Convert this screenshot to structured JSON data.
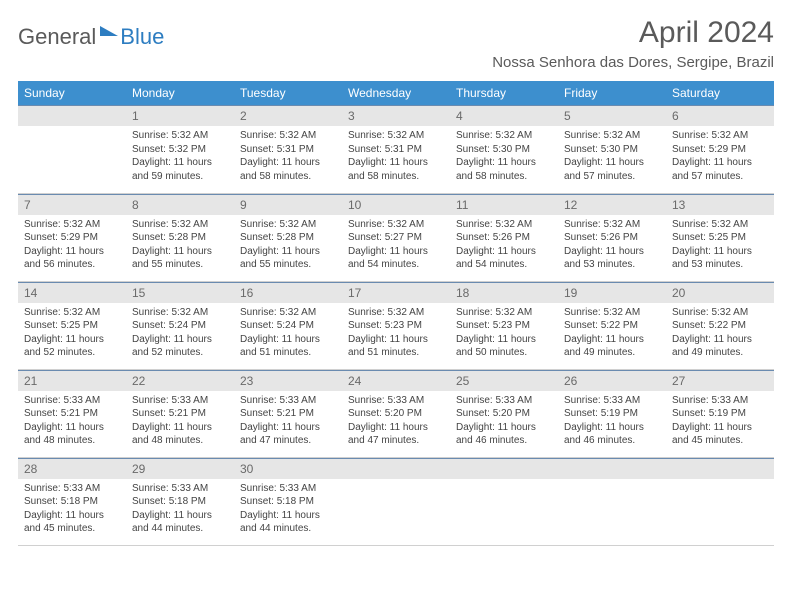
{
  "logo": {
    "part1": "General",
    "part2": "Blue"
  },
  "title": "April 2024",
  "location": "Nossa Senhora das Dores, Sergipe, Brazil",
  "colors": {
    "header_bg": "#3d8fce",
    "header_text": "#ffffff",
    "daynum_bg": "#e6e6e6",
    "daynum_text": "#6a6a6a",
    "border": "#6a8bb0",
    "text": "#444444",
    "title": "#5a5a5a",
    "logo_blue": "#2d7dc1"
  },
  "weekdays": [
    "Sunday",
    "Monday",
    "Tuesday",
    "Wednesday",
    "Thursday",
    "Friday",
    "Saturday"
  ],
  "weeks": [
    [
      {
        "num": "",
        "lines": []
      },
      {
        "num": "1",
        "lines": [
          "Sunrise: 5:32 AM",
          "Sunset: 5:32 PM",
          "Daylight: 11 hours",
          "and 59 minutes."
        ]
      },
      {
        "num": "2",
        "lines": [
          "Sunrise: 5:32 AM",
          "Sunset: 5:31 PM",
          "Daylight: 11 hours",
          "and 58 minutes."
        ]
      },
      {
        "num": "3",
        "lines": [
          "Sunrise: 5:32 AM",
          "Sunset: 5:31 PM",
          "Daylight: 11 hours",
          "and 58 minutes."
        ]
      },
      {
        "num": "4",
        "lines": [
          "Sunrise: 5:32 AM",
          "Sunset: 5:30 PM",
          "Daylight: 11 hours",
          "and 58 minutes."
        ]
      },
      {
        "num": "5",
        "lines": [
          "Sunrise: 5:32 AM",
          "Sunset: 5:30 PM",
          "Daylight: 11 hours",
          "and 57 minutes."
        ]
      },
      {
        "num": "6",
        "lines": [
          "Sunrise: 5:32 AM",
          "Sunset: 5:29 PM",
          "Daylight: 11 hours",
          "and 57 minutes."
        ]
      }
    ],
    [
      {
        "num": "7",
        "lines": [
          "Sunrise: 5:32 AM",
          "Sunset: 5:29 PM",
          "Daylight: 11 hours",
          "and 56 minutes."
        ]
      },
      {
        "num": "8",
        "lines": [
          "Sunrise: 5:32 AM",
          "Sunset: 5:28 PM",
          "Daylight: 11 hours",
          "and 55 minutes."
        ]
      },
      {
        "num": "9",
        "lines": [
          "Sunrise: 5:32 AM",
          "Sunset: 5:28 PM",
          "Daylight: 11 hours",
          "and 55 minutes."
        ]
      },
      {
        "num": "10",
        "lines": [
          "Sunrise: 5:32 AM",
          "Sunset: 5:27 PM",
          "Daylight: 11 hours",
          "and 54 minutes."
        ]
      },
      {
        "num": "11",
        "lines": [
          "Sunrise: 5:32 AM",
          "Sunset: 5:26 PM",
          "Daylight: 11 hours",
          "and 54 minutes."
        ]
      },
      {
        "num": "12",
        "lines": [
          "Sunrise: 5:32 AM",
          "Sunset: 5:26 PM",
          "Daylight: 11 hours",
          "and 53 minutes."
        ]
      },
      {
        "num": "13",
        "lines": [
          "Sunrise: 5:32 AM",
          "Sunset: 5:25 PM",
          "Daylight: 11 hours",
          "and 53 minutes."
        ]
      }
    ],
    [
      {
        "num": "14",
        "lines": [
          "Sunrise: 5:32 AM",
          "Sunset: 5:25 PM",
          "Daylight: 11 hours",
          "and 52 minutes."
        ]
      },
      {
        "num": "15",
        "lines": [
          "Sunrise: 5:32 AM",
          "Sunset: 5:24 PM",
          "Daylight: 11 hours",
          "and 52 minutes."
        ]
      },
      {
        "num": "16",
        "lines": [
          "Sunrise: 5:32 AM",
          "Sunset: 5:24 PM",
          "Daylight: 11 hours",
          "and 51 minutes."
        ]
      },
      {
        "num": "17",
        "lines": [
          "Sunrise: 5:32 AM",
          "Sunset: 5:23 PM",
          "Daylight: 11 hours",
          "and 51 minutes."
        ]
      },
      {
        "num": "18",
        "lines": [
          "Sunrise: 5:32 AM",
          "Sunset: 5:23 PM",
          "Daylight: 11 hours",
          "and 50 minutes."
        ]
      },
      {
        "num": "19",
        "lines": [
          "Sunrise: 5:32 AM",
          "Sunset: 5:22 PM",
          "Daylight: 11 hours",
          "and 49 minutes."
        ]
      },
      {
        "num": "20",
        "lines": [
          "Sunrise: 5:32 AM",
          "Sunset: 5:22 PM",
          "Daylight: 11 hours",
          "and 49 minutes."
        ]
      }
    ],
    [
      {
        "num": "21",
        "lines": [
          "Sunrise: 5:33 AM",
          "Sunset: 5:21 PM",
          "Daylight: 11 hours",
          "and 48 minutes."
        ]
      },
      {
        "num": "22",
        "lines": [
          "Sunrise: 5:33 AM",
          "Sunset: 5:21 PM",
          "Daylight: 11 hours",
          "and 48 minutes."
        ]
      },
      {
        "num": "23",
        "lines": [
          "Sunrise: 5:33 AM",
          "Sunset: 5:21 PM",
          "Daylight: 11 hours",
          "and 47 minutes."
        ]
      },
      {
        "num": "24",
        "lines": [
          "Sunrise: 5:33 AM",
          "Sunset: 5:20 PM",
          "Daylight: 11 hours",
          "and 47 minutes."
        ]
      },
      {
        "num": "25",
        "lines": [
          "Sunrise: 5:33 AM",
          "Sunset: 5:20 PM",
          "Daylight: 11 hours",
          "and 46 minutes."
        ]
      },
      {
        "num": "26",
        "lines": [
          "Sunrise: 5:33 AM",
          "Sunset: 5:19 PM",
          "Daylight: 11 hours",
          "and 46 minutes."
        ]
      },
      {
        "num": "27",
        "lines": [
          "Sunrise: 5:33 AM",
          "Sunset: 5:19 PM",
          "Daylight: 11 hours",
          "and 45 minutes."
        ]
      }
    ],
    [
      {
        "num": "28",
        "lines": [
          "Sunrise: 5:33 AM",
          "Sunset: 5:18 PM",
          "Daylight: 11 hours",
          "and 45 minutes."
        ]
      },
      {
        "num": "29",
        "lines": [
          "Sunrise: 5:33 AM",
          "Sunset: 5:18 PM",
          "Daylight: 11 hours",
          "and 44 minutes."
        ]
      },
      {
        "num": "30",
        "lines": [
          "Sunrise: 5:33 AM",
          "Sunset: 5:18 PM",
          "Daylight: 11 hours",
          "and 44 minutes."
        ]
      },
      {
        "num": "",
        "lines": []
      },
      {
        "num": "",
        "lines": []
      },
      {
        "num": "",
        "lines": []
      },
      {
        "num": "",
        "lines": []
      }
    ]
  ]
}
